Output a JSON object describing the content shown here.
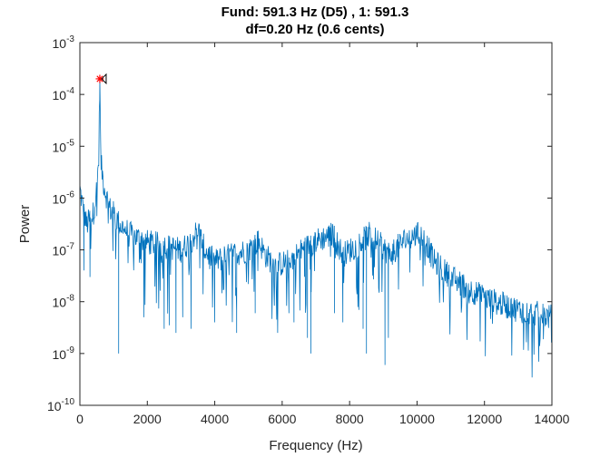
{
  "chart_data": {
    "type": "line",
    "title_line1": "Fund: 591.3 Hz (D5) ,  1: 591.3",
    "title_line2": "df=0.20 Hz (0.6 cents)",
    "xlabel": "Frequency (Hz)",
    "ylabel": "Power",
    "xlim": [
      0,
      14000
    ],
    "ylim": [
      1e-10,
      0.001
    ],
    "yscale": "log",
    "grid": false,
    "x_ticks": [
      "0",
      "2000",
      "4000",
      "6000",
      "8000",
      "10000",
      "12000",
      "14000"
    ],
    "x_tick_values": [
      0,
      2000,
      4000,
      6000,
      8000,
      10000,
      12000,
      14000
    ],
    "y_ticks": [
      {
        "base": "10",
        "exp": "-10",
        "value": 1e-10
      },
      {
        "base": "10",
        "exp": "-9",
        "value": 1e-09
      },
      {
        "base": "10",
        "exp": "-8",
        "value": 1e-08
      },
      {
        "base": "10",
        "exp": "-7",
        "value": 1e-07
      },
      {
        "base": "10",
        "exp": "-6",
        "value": 1e-06
      },
      {
        "base": "10",
        "exp": "-5",
        "value": 1e-05
      },
      {
        "base": "10",
        "exp": "-4",
        "value": 0.0001
      },
      {
        "base": "10",
        "exp": "-3",
        "value": 0.001
      }
    ],
    "series": [
      {
        "color": "#0072BD",
        "envelope": [
          [
            0,
            1.5e-06
          ],
          [
            100,
            6e-07
          ],
          [
            200,
            3e-07
          ],
          [
            300,
            4e-07
          ],
          [
            400,
            5e-07
          ],
          [
            500,
            1.5e-06
          ],
          [
            560,
            6e-06
          ],
          [
            591.3,
            0.0002
          ],
          [
            620,
            5e-06
          ],
          [
            700,
            2e-06
          ],
          [
            800,
            1e-06
          ],
          [
            900,
            6e-07
          ],
          [
            1000,
            5e-07
          ],
          [
            1200,
            3e-07
          ],
          [
            1500,
            2e-07
          ],
          [
            2000,
            1.4e-07
          ],
          [
            2500,
            1.2e-07
          ],
          [
            3000,
            1e-07
          ],
          [
            3300,
            1.5e-07
          ],
          [
            3500,
            2.5e-07
          ],
          [
            3700,
            1e-07
          ],
          [
            4000,
            6e-08
          ],
          [
            4500,
            8e-08
          ],
          [
            5000,
            1e-07
          ],
          [
            5300,
            1.5e-07
          ],
          [
            5500,
            8e-08
          ],
          [
            5800,
            5e-08
          ],
          [
            6200,
            6e-08
          ],
          [
            6600,
            1e-07
          ],
          [
            7000,
            1.5e-07
          ],
          [
            7500,
            2e-07
          ],
          [
            7800,
            8e-08
          ],
          [
            8200,
            1.2e-07
          ],
          [
            8600,
            2e-07
          ],
          [
            8800,
            1.5e-07
          ],
          [
            9200,
            8e-08
          ],
          [
            9600,
            1.5e-07
          ],
          [
            10000,
            2e-07
          ],
          [
            10200,
            1.8e-07
          ],
          [
            10500,
            6e-08
          ],
          [
            11000,
            3e-08
          ],
          [
            11500,
            1.8e-08
          ],
          [
            12000,
            1.2e-08
          ],
          [
            12500,
            9e-09
          ],
          [
            13000,
            7e-09
          ],
          [
            13500,
            6e-09
          ],
          [
            14000,
            5e-09
          ]
        ],
        "dips": [
          [
            120,
            4e-08
          ],
          [
            300,
            3e-08
          ],
          [
            1150,
            1e-09
          ],
          [
            1900,
            5e-09
          ],
          [
            2500,
            3e-09
          ],
          [
            2650,
            3.5e-09
          ],
          [
            2850,
            2.5e-09
          ],
          [
            3050,
            5e-09
          ],
          [
            3300,
            3e-09
          ],
          [
            4000,
            4e-09
          ],
          [
            4650,
            2.5e-09
          ],
          [
            5200,
            6e-09
          ],
          [
            6200,
            6e-09
          ],
          [
            6350,
            4e-09
          ],
          [
            6750,
            2e-09
          ],
          [
            6850,
            1e-09
          ],
          [
            7550,
            6e-09
          ],
          [
            7800,
            4e-09
          ],
          [
            8400,
            3e-09
          ],
          [
            8500,
            1e-09
          ],
          [
            9050,
            6e-10
          ],
          [
            9150,
            2e-09
          ]
        ]
      }
    ],
    "markers": [
      {
        "x": 591.3,
        "y": 0.0002,
        "symbol": "*",
        "color": "#ff0000"
      },
      {
        "x": 591.3,
        "y": 0.0002,
        "symbol": "triangle-left",
        "color": "#000000"
      }
    ]
  }
}
